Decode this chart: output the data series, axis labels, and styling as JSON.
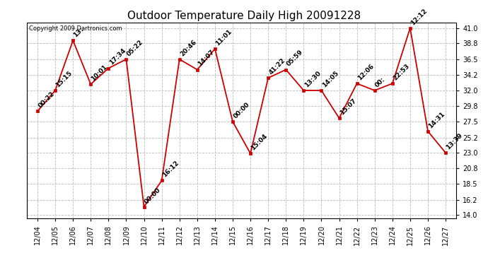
{
  "title": "Outdoor Temperature Daily High 20091228",
  "copyright": "Copyright 2009 Dartronics.com",
  "x_labels": [
    "12/04",
    "12/05",
    "12/06",
    "12/07",
    "12/08",
    "12/09",
    "12/10",
    "12/11",
    "12/12",
    "12/13",
    "12/14",
    "12/15",
    "12/16",
    "12/17",
    "12/18",
    "12/19",
    "12/20",
    "12/21",
    "12/22",
    "12/23",
    "12/24",
    "12/25",
    "12/26",
    "12/27"
  ],
  "y_values": [
    29.0,
    32.0,
    39.2,
    32.9,
    35.2,
    36.5,
    15.2,
    19.0,
    36.5,
    35.0,
    38.0,
    27.5,
    22.9,
    33.8,
    35.0,
    32.0,
    32.0,
    28.0,
    33.0,
    32.0,
    33.0,
    41.0,
    26.1,
    23.0
  ],
  "time_labels": [
    "00:22",
    "15:15",
    "13:",
    "10:01",
    "17:34",
    "05:22",
    "00:00",
    "16:12",
    "20:46",
    "14:07",
    "11:01",
    "00:00",
    "15:04",
    "41:22",
    "05:59",
    "13:30",
    "14:05",
    "15:07",
    "12:06",
    "00:",
    "22:53",
    "12:12",
    "14:31",
    "13:39"
  ],
  "y_ticks": [
    14.0,
    16.2,
    18.5,
    20.8,
    23.0,
    25.2,
    27.5,
    29.8,
    32.0,
    34.2,
    36.5,
    38.8,
    41.0
  ],
  "ylim": [
    13.5,
    41.8
  ],
  "line_color": "#cc0000",
  "marker_color": "#cc0000",
  "bg_color": "#ffffff",
  "grid_color": "#bbbbbb",
  "title_fontsize": 11,
  "annotation_fontsize": 6.5,
  "tick_fontsize": 7,
  "copyright_fontsize": 6
}
